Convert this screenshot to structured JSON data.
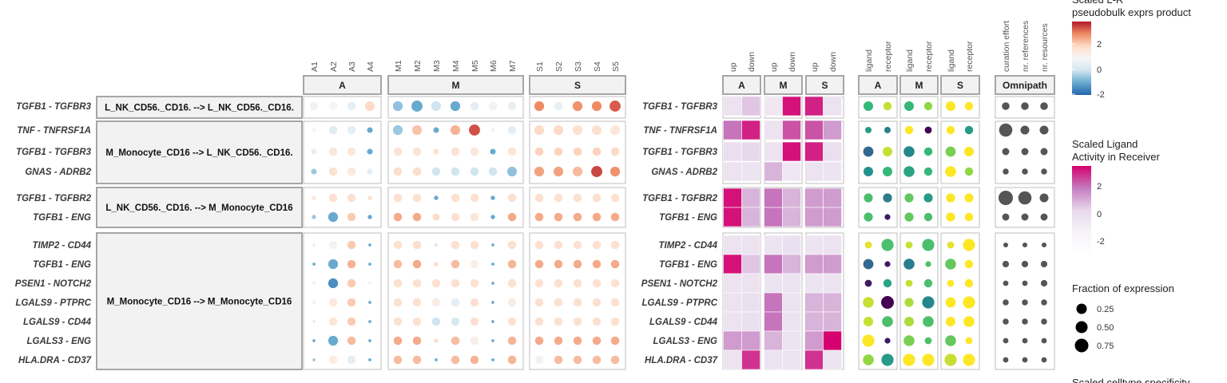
{
  "chart_data": {
    "type": "heatmap",
    "rows": [
      {
        "lr": "TGFB1 - TGFBR3",
        "group": 0
      },
      {
        "lr": "TNF - TNFRSF1A",
        "group": 1
      },
      {
        "lr": "TGFB1 - TGFBR3",
        "group": 1
      },
      {
        "lr": "GNAS - ADRB2",
        "group": 1
      },
      {
        "lr": "TGFB1 - TGFBR2",
        "group": 2
      },
      {
        "lr": "TGFB1 - ENG",
        "group": 2
      },
      {
        "lr": "TIMP2 - CD44",
        "group": 3
      },
      {
        "lr": "TGFB1 - ENG",
        "group": 3
      },
      {
        "lr": "PSEN1 - NOTCH2",
        "group": 3
      },
      {
        "lr": "LGALS9 - PTPRC",
        "group": 3
      },
      {
        "lr": "LGALS9 - CD44",
        "group": 3
      },
      {
        "lr": "LGALS3 - ENG",
        "group": 3
      },
      {
        "lr": "HLA.DRA - CD37",
        "group": 3
      }
    ],
    "celltype_groups": [
      "L_NK_CD56._CD16. --> L_NK_CD56._CD16.",
      "M_Monocyte_CD16 --> L_NK_CD56._CD16.",
      "L_NK_CD56._CD16. --> M_Monocyte_CD16",
      "M_Monocyte_CD16 --> M_Monocyte_CD16"
    ],
    "exprs_panels": [
      {
        "title": "A",
        "columns": [
          "A1",
          "A2",
          "A3",
          "A4"
        ]
      },
      {
        "title": "M",
        "columns": [
          "M1",
          "M2",
          "M3",
          "M4",
          "M5",
          "M6",
          "M7"
        ]
      },
      {
        "title": "S",
        "columns": [
          "S1",
          "S2",
          "S3",
          "S4",
          "S5"
        ]
      }
    ],
    "exprs_values": [
      [
        [
          -0.2,
          -0.1,
          -0.5,
          1.0
        ],
        [
          -1.6,
          -2.0,
          -1.0,
          -2.0,
          -0.5,
          -0.2,
          -0.4
        ],
        [
          2.0,
          -0.4,
          1.9,
          2.0,
          2.4
        ]
      ],
      [
        [
          -0.1,
          -0.6,
          -0.5,
          -2.0
        ],
        [
          -1.5,
          1.3,
          -2.0,
          1.5,
          2.5,
          -0.2,
          -0.5
        ],
        [
          1.0,
          1.0,
          0.8,
          0.8,
          0.6
        ]
      ],
      [
        [
          -0.5,
          0.6,
          0.6,
          -2.0
        ],
        [
          0.7,
          0.7,
          0.8,
          0.7,
          0.6,
          -2.0,
          0.6
        ],
        [
          1.1,
          1.1,
          1.1,
          1.1,
          1.0
        ]
      ],
      [
        [
          -1.5,
          0.8,
          0.5,
          -0.5
        ],
        [
          0.9,
          0.9,
          -1.0,
          -1.0,
          -1.0,
          -1.0,
          -1.6
        ],
        [
          1.7,
          1.7,
          1.4,
          2.6,
          1.9
        ]
      ],
      [
        [
          0.6,
          0.8,
          0.8,
          0.8
        ],
        [
          0.8,
          0.8,
          -2.0,
          0.8,
          0.8,
          -2.0,
          0.8
        ],
        [
          0.8,
          0.8,
          0.8,
          0.8,
          0.8
        ]
      ],
      [
        [
          -1.5,
          -2.0,
          1.2,
          -2.0
        ],
        [
          1.6,
          1.6,
          1.0,
          0.8,
          0.6,
          -2.0,
          1.6
        ],
        [
          1.6,
          1.6,
          1.6,
          1.6,
          1.6
        ]
      ],
      [
        [
          0.6,
          -0.2,
          1.2,
          -2.0
        ],
        [
          0.8,
          0.9,
          -1.0,
          0.8,
          0.8,
          -2.0,
          0.8
        ],
        [
          0.8,
          0.8,
          0.8,
          0.8,
          0.8
        ]
      ],
      [
        [
          -2.0,
          -2.0,
          1.5,
          -2.0
        ],
        [
          1.4,
          1.6,
          0.9,
          1.4,
          0.3,
          -2.0,
          1.5
        ],
        [
          1.6,
          1.6,
          1.6,
          1.6,
          1.6
        ]
      ],
      [
        [
          0.4,
          -2.4,
          1.2,
          0.3
        ],
        [
          0.8,
          0.8,
          0.8,
          0.8,
          0.8,
          -2.0,
          0.8
        ],
        [
          0.8,
          0.8,
          0.8,
          0.8,
          0.8
        ]
      ],
      [
        [
          0.4,
          0.5,
          1.2,
          -2.0
        ],
        [
          0.8,
          0.8,
          0.4,
          -0.5,
          0.8,
          -2.0,
          0.4
        ],
        [
          0.8,
          0.8,
          0.8,
          0.8,
          0.8
        ]
      ],
      [
        [
          0.6,
          0.6,
          1.2,
          -2.0
        ],
        [
          0.8,
          0.8,
          -1.0,
          -0.8,
          0.8,
          -2.0,
          0.8
        ],
        [
          0.8,
          0.8,
          0.8,
          0.8,
          0.8
        ]
      ],
      [
        [
          -2.0,
          -2.0,
          1.4,
          -2.0
        ],
        [
          1.6,
          1.6,
          0.9,
          1.4,
          0.3,
          -2.0,
          1.5
        ],
        [
          1.6,
          1.6,
          1.6,
          1.6,
          1.6
        ]
      ],
      [
        [
          -1.5,
          0.4,
          -0.5,
          -2.0
        ],
        [
          1.4,
          1.4,
          -2.0,
          1.4,
          1.5,
          -2.0,
          1.5
        ],
        [
          -0.2,
          1.4,
          1.4,
          1.4,
          1.4
        ]
      ]
    ],
    "exprs_fraction": [
      [
        [
          0.5,
          0.5,
          0.5,
          0.6
        ],
        [
          0.6,
          0.7,
          0.6,
          0.6,
          0.5,
          0.5,
          0.5
        ],
        [
          0.6,
          0.5,
          0.6,
          0.6,
          0.7
        ]
      ],
      [
        [
          0.2,
          0.5,
          0.5,
          0.3
        ],
        [
          0.6,
          0.6,
          0.3,
          0.6,
          0.7,
          0.2,
          0.5
        ],
        [
          0.6,
          0.6,
          0.6,
          0.6,
          0.6
        ]
      ],
      [
        [
          0.3,
          0.5,
          0.5,
          0.3
        ],
        [
          0.5,
          0.5,
          0.3,
          0.5,
          0.5,
          0.3,
          0.5
        ],
        [
          0.5,
          0.5,
          0.5,
          0.5,
          0.5
        ]
      ],
      [
        [
          0.3,
          0.5,
          0.5,
          0.3
        ],
        [
          0.5,
          0.5,
          0.5,
          0.5,
          0.5,
          0.5,
          0.6
        ],
        [
          0.6,
          0.6,
          0.6,
          0.7,
          0.6
        ]
      ],
      [
        [
          0.2,
          0.5,
          0.5,
          0.2
        ],
        [
          0.5,
          0.5,
          0.2,
          0.5,
          0.5,
          0.2,
          0.5
        ],
        [
          0.5,
          0.5,
          0.5,
          0.5,
          0.5
        ]
      ],
      [
        [
          0.2,
          0.6,
          0.5,
          0.2
        ],
        [
          0.5,
          0.5,
          0.4,
          0.5,
          0.5,
          0.2,
          0.5
        ],
        [
          0.5,
          0.5,
          0.5,
          0.5,
          0.5
        ]
      ],
      [
        [
          0.1,
          0.5,
          0.5,
          0.1
        ],
        [
          0.5,
          0.5,
          0.1,
          0.5,
          0.5,
          0.1,
          0.5
        ],
        [
          0.5,
          0.5,
          0.5,
          0.5,
          0.5
        ]
      ],
      [
        [
          0.1,
          0.6,
          0.5,
          0.1
        ],
        [
          0.5,
          0.5,
          0.2,
          0.5,
          0.5,
          0.1,
          0.5
        ],
        [
          0.5,
          0.5,
          0.5,
          0.5,
          0.5
        ]
      ],
      [
        [
          0.1,
          0.6,
          0.5,
          0.1
        ],
        [
          0.5,
          0.5,
          0.5,
          0.5,
          0.5,
          0.1,
          0.5
        ],
        [
          0.5,
          0.5,
          0.5,
          0.5,
          0.5
        ]
      ],
      [
        [
          0.1,
          0.5,
          0.5,
          0.1
        ],
        [
          0.5,
          0.5,
          0.5,
          0.5,
          0.5,
          0.1,
          0.5
        ],
        [
          0.5,
          0.5,
          0.5,
          0.5,
          0.5
        ]
      ],
      [
        [
          0.1,
          0.5,
          0.5,
          0.1
        ],
        [
          0.5,
          0.5,
          0.5,
          0.5,
          0.5,
          0.1,
          0.5
        ],
        [
          0.5,
          0.5,
          0.5,
          0.5,
          0.5
        ]
      ],
      [
        [
          0.1,
          0.6,
          0.5,
          0.1
        ],
        [
          0.5,
          0.5,
          0.2,
          0.5,
          0.5,
          0.1,
          0.5
        ],
        [
          0.5,
          0.5,
          0.5,
          0.5,
          0.5
        ]
      ],
      [
        [
          0.1,
          0.5,
          0.5,
          0.1
        ],
        [
          0.5,
          0.5,
          0.1,
          0.5,
          0.5,
          0.1,
          0.5
        ],
        [
          0.5,
          0.5,
          0.5,
          0.5,
          0.5
        ]
      ]
    ],
    "activity_panels": [
      {
        "title": "A",
        "columns": [
          "up",
          "down"
        ]
      },
      {
        "title": "M",
        "columns": [
          "up",
          "down"
        ]
      },
      {
        "title": "S",
        "columns": [
          "up",
          "down"
        ]
      }
    ],
    "activity_values": [
      [
        [
          -0.5,
          0.3
        ],
        [
          -0.8,
          2.8
        ],
        [
          2.6,
          -0.5
        ]
      ],
      [
        [
          1.6,
          2.6
        ],
        [
          -0.5,
          2.0
        ],
        [
          2.0,
          1.0
        ]
      ],
      [
        [
          -0.3,
          0.0
        ],
        [
          -0.5,
          2.8
        ],
        [
          2.6,
          -0.3
        ]
      ],
      [
        [
          -0.5,
          -0.6
        ],
        [
          0.6,
          -0.7
        ],
        [
          -0.5,
          -0.6
        ]
      ],
      [
        [
          2.8,
          0.6
        ],
        [
          1.6,
          0.6
        ],
        [
          1.0,
          1.0
        ]
      ],
      [
        [
          2.8,
          0.6
        ],
        [
          1.6,
          0.6
        ],
        [
          1.0,
          1.0
        ]
      ],
      [
        [
          -0.5,
          -0.5
        ],
        [
          -0.6,
          -0.4
        ],
        [
          -0.6,
          -0.5
        ]
      ],
      [
        [
          2.8,
          0.3
        ],
        [
          1.6,
          0.6
        ],
        [
          1.0,
          1.0
        ]
      ],
      [
        [
          -0.5,
          -0.5
        ],
        [
          -0.6,
          -0.5
        ],
        [
          -0.6,
          -0.5
        ]
      ],
      [
        [
          -0.5,
          -0.4
        ],
        [
          1.6,
          -0.5
        ],
        [
          0.6,
          0.6
        ]
      ],
      [
        [
          -0.5,
          -0.4
        ],
        [
          1.6,
          -0.5
        ],
        [
          0.6,
          0.6
        ]
      ],
      [
        [
          1.0,
          1.0
        ],
        [
          0.6,
          -0.5
        ],
        [
          1.0,
          3.0
        ]
      ],
      [
        [
          -0.5,
          2.4
        ],
        [
          -0.5,
          -0.5
        ],
        [
          2.4,
          -0.5
        ]
      ]
    ],
    "lr_panels": [
      {
        "title": "A",
        "columns": [
          "ligand",
          "receptor"
        ]
      },
      {
        "title": "M",
        "columns": [
          "ligand",
          "receptor"
        ]
      },
      {
        "title": "S",
        "columns": [
          "ligand",
          "receptor"
        ]
      }
    ],
    "lr_values": [
      [
        [
          0.6,
          0.9
        ],
        [
          0.6,
          0.8
        ],
        [
          1.0,
          1.0
        ]
      ],
      [
        [
          0.45,
          0.3
        ],
        [
          1.0,
          0.0
        ],
        [
          1.0,
          0.45
        ]
      ],
      [
        [
          0.2,
          0.9
        ],
        [
          0.35,
          0.6
        ],
        [
          0.75,
          1.0
        ]
      ],
      [
        [
          0.4,
          0.6
        ],
        [
          0.5,
          0.6
        ],
        [
          1.0,
          0.8
        ]
      ],
      [
        [
          0.65,
          0.3
        ],
        [
          0.7,
          0.45
        ],
        [
          1.0,
          1.0
        ]
      ],
      [
        [
          0.65,
          0.05
        ],
        [
          0.7,
          0.65
        ],
        [
          1.0,
          1.0
        ]
      ],
      [
        [
          0.95,
          0.65
        ],
        [
          0.9,
          0.65
        ],
        [
          0.95,
          1.0
        ]
      ],
      [
        [
          0.2,
          0.05
        ],
        [
          0.3,
          0.65
        ],
        [
          0.7,
          1.0
        ]
      ],
      [
        [
          0.05,
          0.5
        ],
        [
          0.9,
          0.65
        ],
        [
          1.0,
          1.0
        ]
      ],
      [
        [
          0.9,
          0.0
        ],
        [
          0.85,
          0.35
        ],
        [
          1.0,
          1.0
        ]
      ],
      [
        [
          0.9,
          0.65
        ],
        [
          0.85,
          0.65
        ],
        [
          1.0,
          1.0
        ]
      ],
      [
        [
          1.0,
          0.05
        ],
        [
          0.75,
          0.65
        ],
        [
          0.7,
          1.0
        ]
      ],
      [
        [
          0.8,
          0.45
        ],
        [
          1.0,
          1.0
        ],
        [
          0.9,
          1.0
        ]
      ]
    ],
    "lr_sizes": [
      [
        [
          0.5,
          0.4
        ],
        [
          0.5,
          0.4
        ],
        [
          0.5,
          0.4
        ]
      ],
      [
        [
          0.25,
          0.25
        ],
        [
          0.4,
          0.3
        ],
        [
          0.4,
          0.4
        ]
      ],
      [
        [
          0.55,
          0.5
        ],
        [
          0.6,
          0.4
        ],
        [
          0.55,
          0.5
        ]
      ],
      [
        [
          0.5,
          0.5
        ],
        [
          0.6,
          0.4
        ],
        [
          0.6,
          0.4
        ]
      ],
      [
        [
          0.45,
          0.45
        ],
        [
          0.45,
          0.45
        ],
        [
          0.45,
          0.45
        ]
      ],
      [
        [
          0.45,
          0.2
        ],
        [
          0.45,
          0.4
        ],
        [
          0.45,
          0.4
        ]
      ],
      [
        [
          0.3,
          0.7
        ],
        [
          0.3,
          0.7
        ],
        [
          0.3,
          0.7
        ]
      ],
      [
        [
          0.55,
          0.2
        ],
        [
          0.6,
          0.2
        ],
        [
          0.6,
          0.4
        ]
      ],
      [
        [
          0.3,
          0.4
        ],
        [
          0.3,
          0.4
        ],
        [
          0.3,
          0.4
        ]
      ],
      [
        [
          0.6,
          0.75
        ],
        [
          0.45,
          0.7
        ],
        [
          0.55,
          0.7
        ]
      ],
      [
        [
          0.5,
          0.6
        ],
        [
          0.5,
          0.6
        ],
        [
          0.5,
          0.6
        ]
      ],
      [
        [
          0.7,
          0.2
        ],
        [
          0.6,
          0.3
        ],
        [
          0.6,
          0.3
        ]
      ],
      [
        [
          0.6,
          0.7
        ],
        [
          0.7,
          0.7
        ],
        [
          0.7,
          0.7
        ]
      ]
    ],
    "omnipath_panel": {
      "title": "Omnipath",
      "columns": [
        "curation effort",
        "nr. references",
        "nr. resources"
      ]
    },
    "omnipath_sizes": [
      [
        0.4,
        0.4,
        0.4
      ],
      [
        0.9,
        0.5,
        0.5
      ],
      [
        0.35,
        0.35,
        0.35
      ],
      [
        0.25,
        0.25,
        0.25
      ],
      [
        1.0,
        0.9,
        0.5
      ],
      [
        0.35,
        0.35,
        0.35
      ],
      [
        0.15,
        0.15,
        0.15
      ],
      [
        0.3,
        0.3,
        0.3
      ],
      [
        0.2,
        0.2,
        0.3
      ],
      [
        0.25,
        0.25,
        0.25
      ],
      [
        0.25,
        0.25,
        0.25
      ],
      [
        0.2,
        0.2,
        0.2
      ],
      [
        0.2,
        0.2,
        0.2
      ]
    ],
    "legends": {
      "exprs": {
        "title_line1": "Scaled L-R",
        "title_line2": "pseudobulk exprs product",
        "ticks": [
          "2",
          "0",
          "-2"
        ],
        "colors": [
          "#b2182b",
          "#ef8a62",
          "#fddbc7",
          "#f7f7f7",
          "#d1e5f0",
          "#67a9cf",
          "#2166ac"
        ]
      },
      "activity": {
        "title_line1": "Scaled Ligand",
        "title_line2": "Activity in Receiver",
        "ticks": [
          "2",
          "0",
          "-2"
        ],
        "colors": [
          "#d6006e",
          "#c57cc0",
          "#e7d9ec",
          "#f7f4f9",
          "#ffffff"
        ]
      },
      "fraction": {
        "title": "Fraction of expression",
        "ticks": [
          "0.25",
          "0.50",
          "0.75"
        ]
      },
      "specificity": {
        "title": "Scaled celltype specificity"
      }
    },
    "lr_colors": [
      "#440154",
      "#31688e",
      "#21918c",
      "#35b779",
      "#90d743",
      "#fde725"
    ]
  }
}
